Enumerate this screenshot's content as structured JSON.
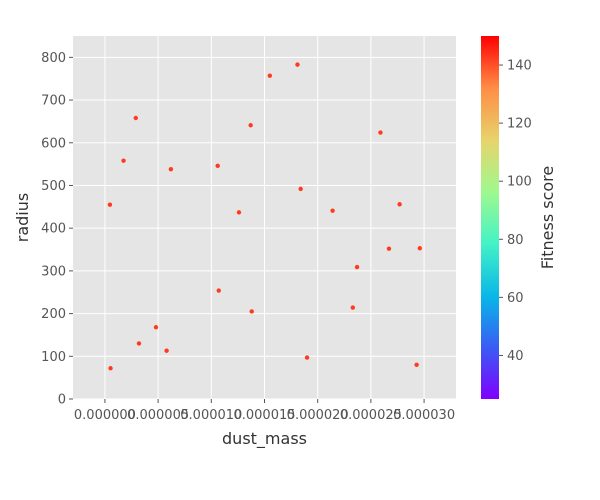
{
  "chart_data": {
    "type": "scatter",
    "xlabel": "dust_mass",
    "ylabel": "radius",
    "xlim": [
      -3e-06,
      3.3e-05
    ],
    "ylim": [
      0,
      850
    ],
    "x_ticks": [
      0.0,
      5e-06,
      1e-05,
      1.5e-05,
      2e-05,
      2.5e-05,
      3e-05
    ],
    "x_tick_labels": [
      "0.000000",
      "0.000005",
      "0.000010",
      "0.000015",
      "0.000020",
      "0.000025",
      "0.000030"
    ],
    "y_ticks": [
      0,
      100,
      200,
      300,
      400,
      500,
      600,
      700,
      800
    ],
    "y_tick_labels": [
      "0",
      "100",
      "200",
      "300",
      "400",
      "500",
      "600",
      "700",
      "800"
    ],
    "grid": true,
    "marker_color": "#ff3b1f",
    "colorbar": {
      "label": "Fitness score",
      "range": [
        25,
        150
      ],
      "ticks": [
        40,
        60,
        80,
        100,
        120,
        140
      ],
      "tick_labels": [
        "40",
        "60",
        "80",
        "100",
        "120",
        "140"
      ],
      "colormap": "rainbow"
    },
    "points": [
      {
        "x": 4.7e-07,
        "y": 455
      },
      {
        "x": 5.3e-07,
        "y": 72
      },
      {
        "x": 1.75e-06,
        "y": 558
      },
      {
        "x": 2.9e-06,
        "y": 658
      },
      {
        "x": 3.2e-06,
        "y": 130
      },
      {
        "x": 4.8e-06,
        "y": 168
      },
      {
        "x": 5.8e-06,
        "y": 113
      },
      {
        "x": 6.2e-06,
        "y": 538
      },
      {
        "x": 1.06e-05,
        "y": 546
      },
      {
        "x": 1.07e-05,
        "y": 254
      },
      {
        "x": 1.26e-05,
        "y": 437
      },
      {
        "x": 1.37e-05,
        "y": 641
      },
      {
        "x": 1.38e-05,
        "y": 205
      },
      {
        "x": 1.55e-05,
        "y": 757
      },
      {
        "x": 1.81e-05,
        "y": 783
      },
      {
        "x": 1.84e-05,
        "y": 492
      },
      {
        "x": 1.9e-05,
        "y": 97
      },
      {
        "x": 2.14e-05,
        "y": 441
      },
      {
        "x": 2.33e-05,
        "y": 214
      },
      {
        "x": 2.37e-05,
        "y": 309
      },
      {
        "x": 2.59e-05,
        "y": 624
      },
      {
        "x": 2.67e-05,
        "y": 352
      },
      {
        "x": 2.77e-05,
        "y": 456
      },
      {
        "x": 2.93e-05,
        "y": 80
      },
      {
        "x": 2.96e-05,
        "y": 353
      }
    ]
  }
}
